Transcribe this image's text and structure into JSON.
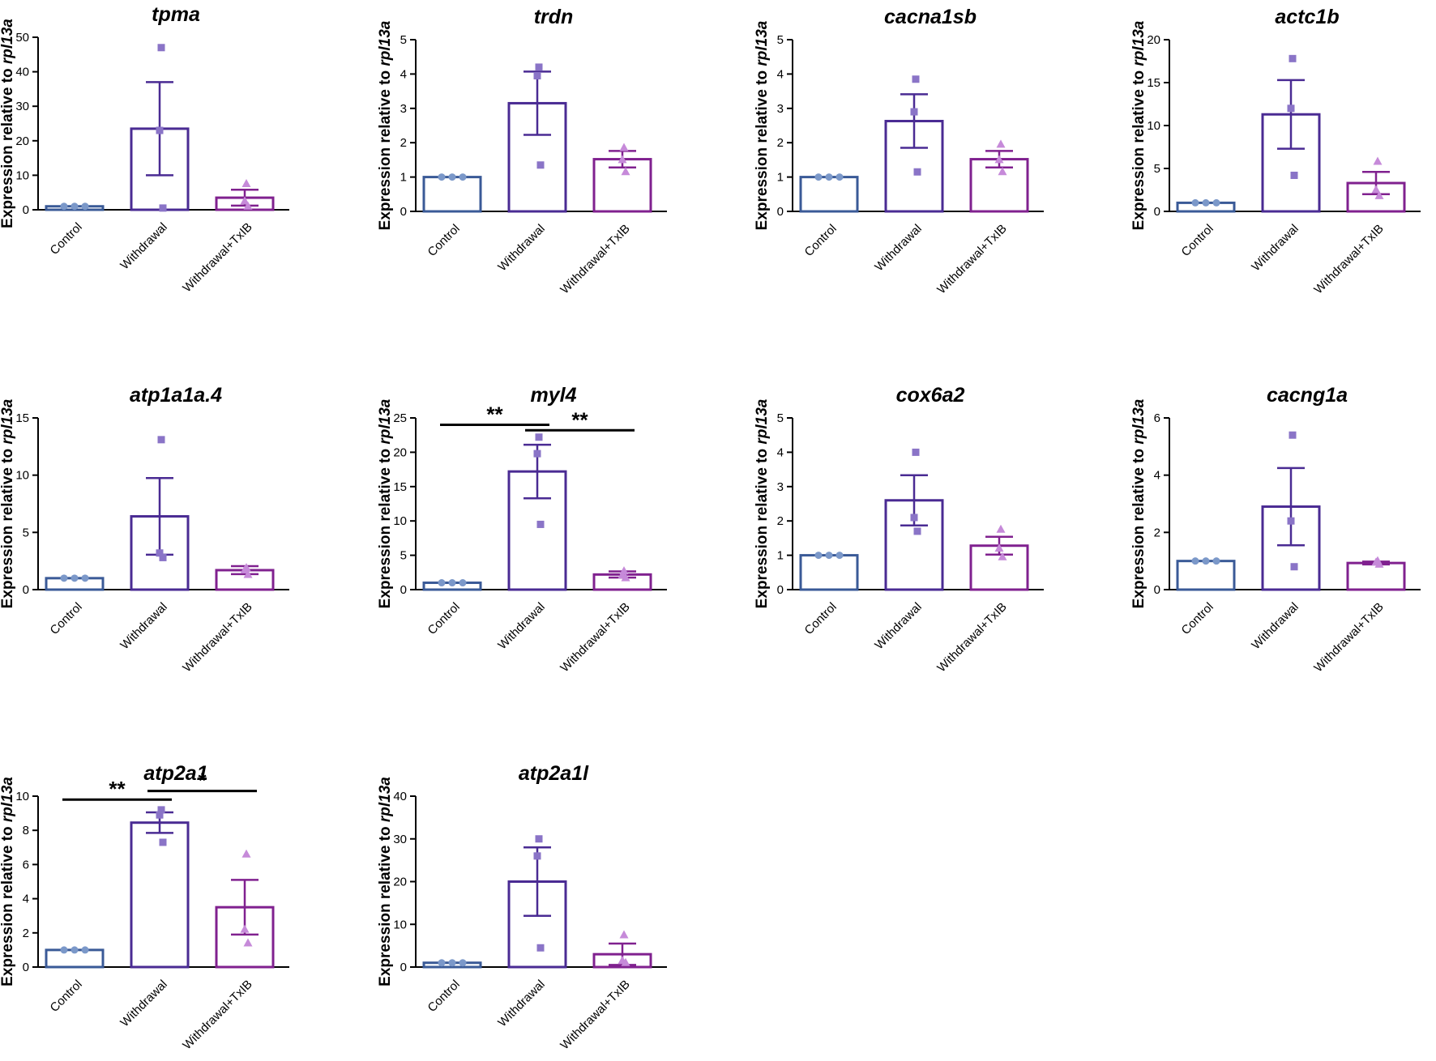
{
  "colors": {
    "control": "#3a5a97",
    "withdrawal": "#4a2b93",
    "txib": "#80218f",
    "axis": "#000000",
    "control_pts": "#7b98c9",
    "withdrawal_pts": "#8a74c7",
    "txib_pts": "#c68ad9"
  },
  "chart_data": [
    {
      "type": "bar",
      "title": "tpma",
      "ylabel_main": "Expression relative to ",
      "ylabel_gene": "rpl13a",
      "categories": [
        "Control",
        "Withdrawal",
        "Withdrawal+TxIB"
      ],
      "ylim": [
        0,
        50
      ],
      "yticks": [
        0,
        10,
        20,
        30,
        40,
        50
      ],
      "values": [
        1.0,
        23.5,
        3.5
      ],
      "err": [
        0,
        13.5,
        2.3
      ],
      "points": [
        [
          1,
          1,
          1
        ],
        [
          47,
          23,
          0.5
        ],
        [
          7.5,
          2.5,
          1
        ]
      ],
      "sig": []
    },
    {
      "type": "bar",
      "title": "trdn",
      "ylabel_main": "Expression relative to ",
      "ylabel_gene": "rpl13a",
      "categories": [
        "Control",
        "Withdrawal",
        "Withdrawal+TxIB"
      ],
      "ylim": [
        0,
        5
      ],
      "yticks": [
        0,
        1,
        2,
        3,
        4,
        5
      ],
      "values": [
        1.0,
        3.15,
        1.52
      ],
      "err": [
        0,
        0.92,
        0.24
      ],
      "points": [
        [
          1,
          1,
          1
        ],
        [
          4.2,
          3.95,
          1.35
        ],
        [
          1.85,
          1.5,
          1.15
        ]
      ],
      "sig": []
    },
    {
      "type": "bar",
      "title": "cacna1sb",
      "ylabel_main": "Expression relative to ",
      "ylabel_gene": "rpl13a",
      "categories": [
        "Control",
        "Withdrawal",
        "Withdrawal+TxIB"
      ],
      "ylim": [
        0,
        5
      ],
      "yticks": [
        0,
        1,
        2,
        3,
        4,
        5
      ],
      "values": [
        1.0,
        2.63,
        1.52
      ],
      "err": [
        0,
        0.78,
        0.24
      ],
      "points": [
        [
          1,
          1,
          1
        ],
        [
          3.85,
          2.9,
          1.15
        ],
        [
          1.95,
          1.5,
          1.15
        ]
      ],
      "sig": []
    },
    {
      "type": "bar",
      "title": "actc1b",
      "ylabel_main": "Expression relative to ",
      "ylabel_gene": "rpl13a",
      "categories": [
        "Control",
        "Withdrawal",
        "Withdrawal+TxIB"
      ],
      "ylim": [
        0,
        20
      ],
      "yticks": [
        0,
        5,
        10,
        15,
        20
      ],
      "values": [
        1.0,
        11.3,
        3.3
      ],
      "err": [
        0,
        4.0,
        1.3
      ],
      "points": [
        [
          1,
          1,
          1
        ],
        [
          17.8,
          12.0,
          4.2
        ],
        [
          5.8,
          2.5,
          1.8
        ]
      ],
      "sig": []
    },
    {
      "type": "bar",
      "title": "atp1a1a.4",
      "ylabel_main": "Expression relative to ",
      "ylabel_gene": "rpl13a",
      "categories": [
        "Control",
        "Withdrawal",
        "Withdrawal+TxIB"
      ],
      "ylim": [
        0,
        15
      ],
      "yticks": [
        0,
        5,
        10,
        15
      ],
      "values": [
        1.0,
        6.4,
        1.7
      ],
      "err": [
        0,
        3.35,
        0.35
      ],
      "points": [
        [
          1,
          1,
          1
        ],
        [
          13.1,
          3.2,
          2.8
        ],
        [
          1.9,
          1.7,
          1.3
        ]
      ],
      "sig": []
    },
    {
      "type": "bar",
      "title": "myl4",
      "ylabel_main": "Expression relative to ",
      "ylabel_gene": "rpl13a",
      "categories": [
        "Control",
        "Withdrawal",
        "Withdrawal+TxIB"
      ],
      "ylim": [
        0,
        25
      ],
      "yticks": [
        0,
        5,
        10,
        15,
        20,
        25
      ],
      "values": [
        1.0,
        17.2,
        2.2
      ],
      "err": [
        0,
        3.9,
        0.45
      ],
      "points": [
        [
          1,
          1,
          1
        ],
        [
          22.2,
          19.8,
          9.5
        ],
        [
          2.7,
          2.1,
          1.7
        ]
      ],
      "sig": [
        {
          "from": 0,
          "to": 1,
          "y": 24,
          "label": "**"
        },
        {
          "from": 1,
          "to": 2,
          "y": 23.2,
          "label": "**"
        }
      ]
    },
    {
      "type": "bar",
      "title": "cox6a2",
      "ylabel_main": "Expression relative to ",
      "ylabel_gene": "rpl13a",
      "categories": [
        "Control",
        "Withdrawal",
        "Withdrawal+TxIB"
      ],
      "ylim": [
        0,
        5
      ],
      "yticks": [
        0,
        1,
        2,
        3,
        4,
        5
      ],
      "values": [
        1.0,
        2.6,
        1.28
      ],
      "err": [
        0,
        0.73,
        0.26
      ],
      "points": [
        [
          1,
          1,
          1
        ],
        [
          4.0,
          2.1,
          1.7
        ],
        [
          1.75,
          1.2,
          0.95
        ]
      ],
      "sig": []
    },
    {
      "type": "bar",
      "title": "cacng1a",
      "ylabel_main": "Expression relative to ",
      "ylabel_gene": "rpl13a",
      "categories": [
        "Control",
        "Withdrawal",
        "Withdrawal+TxIB"
      ],
      "ylim": [
        0,
        6
      ],
      "yticks": [
        0,
        2,
        4,
        6
      ],
      "values": [
        1.0,
        2.9,
        0.93
      ],
      "err": [
        0,
        1.35,
        0.05
      ],
      "points": [
        [
          1,
          1,
          1
        ],
        [
          5.4,
          2.4,
          0.8
        ],
        [
          1.0,
          0.95,
          0.88
        ]
      ],
      "sig": []
    },
    {
      "type": "bar",
      "title": "atp2a1",
      "ylabel_main": "Expression relative to ",
      "ylabel_gene": "rpl13a",
      "categories": [
        "Control",
        "Withdrawal",
        "Withdrawal+TxIB"
      ],
      "ylim": [
        0,
        10
      ],
      "yticks": [
        0,
        2,
        4,
        6,
        8,
        10
      ],
      "values": [
        1.0,
        8.45,
        3.5
      ],
      "err": [
        0,
        0.6,
        1.6
      ],
      "points": [
        [
          1,
          1,
          1
        ],
        [
          9.2,
          8.9,
          7.3
        ],
        [
          6.6,
          2.2,
          1.4
        ]
      ],
      "sig": [
        {
          "from": 0,
          "to": 1,
          "y": 9.8,
          "label": "**"
        },
        {
          "from": 1,
          "to": 2,
          "y": 10.3,
          "label": "*"
        }
      ]
    },
    {
      "type": "bar",
      "title": "atp2a1l",
      "ylabel_main": "Expression relative to ",
      "ylabel_gene": "rpl13a",
      "categories": [
        "Control",
        "Withdrawal",
        "Withdrawal+TxIB"
      ],
      "ylim": [
        0,
        40
      ],
      "yticks": [
        0,
        10,
        20,
        30,
        40
      ],
      "values": [
        1.0,
        20.0,
        3.0
      ],
      "err": [
        0,
        8.0,
        2.5
      ],
      "points": [
        [
          1,
          1,
          1
        ],
        [
          30,
          26,
          4.5
        ],
        [
          7.5,
          1.5,
          1
        ]
      ],
      "sig": []
    }
  ]
}
